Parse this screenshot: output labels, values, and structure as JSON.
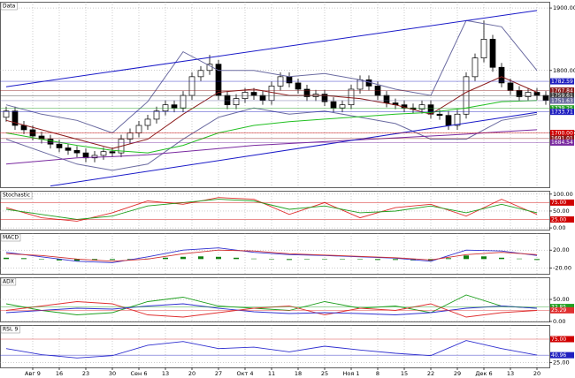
{
  "chart_data": [
    {
      "type": "candlestick",
      "title": "Data",
      "categories": [
        null,
        null,
        null,
        "Авг 9",
        null,
        null,
        "16",
        null,
        null,
        "23",
        null,
        null,
        "30",
        null,
        null,
        "Сен 6",
        null,
        null,
        "13",
        null,
        null,
        "20",
        null,
        null,
        "27",
        null,
        null,
        "Окт 4",
        null,
        null,
        "11",
        null,
        null,
        "18",
        null,
        null,
        "25",
        null,
        null,
        "Ноя 1",
        null,
        null,
        "8",
        null,
        null,
        "15",
        null,
        null,
        "22",
        null,
        null,
        "29",
        null,
        null,
        "Дек 6",
        null,
        null,
        "13",
        null,
        null,
        "20",
        null
      ],
      "open": [
        1725,
        1735,
        1712,
        1705,
        1695,
        1690,
        1682,
        1676,
        1672,
        1668,
        1660,
        1664,
        1670,
        1668,
        1690,
        1700,
        1712,
        1722,
        1735,
        1745,
        1740,
        1760,
        1790,
        1800,
        1810,
        1760,
        1745,
        1755,
        1765,
        1760,
        1752,
        1775,
        1790,
        1780,
        1770,
        1758,
        1762,
        1750,
        1740,
        1745,
        1770,
        1785,
        1775,
        1760,
        1748,
        1745,
        1740,
        1738,
        1745,
        1730,
        1728,
        1712,
        1730,
        1790,
        1820,
        1850,
        1805,
        1780,
        1768,
        1758,
        1765,
        1760
      ],
      "high": [
        1742,
        1742,
        1719,
        1712,
        1702,
        1697,
        1689,
        1683,
        1679,
        1675,
        1671,
        1677,
        1677,
        1697,
        1707,
        1719,
        1729,
        1742,
        1752,
        1752,
        1767,
        1797,
        1807,
        1825,
        1817,
        1767,
        1762,
        1772,
        1772,
        1767,
        1782,
        1797,
        1797,
        1787,
        1777,
        1769,
        1769,
        1757,
        1752,
        1777,
        1792,
        1792,
        1782,
        1767,
        1755,
        1752,
        1747,
        1752,
        1752,
        1737,
        1735,
        1737,
        1797,
        1827,
        1880,
        1857,
        1812,
        1787,
        1775,
        1772,
        1772,
        1767
      ],
      "low": [
        1718,
        1705,
        1698,
        1688,
        1683,
        1675,
        1669,
        1665,
        1661,
        1653,
        1653,
        1657,
        1661,
        1661,
        1683,
        1693,
        1705,
        1715,
        1728,
        1733,
        1733,
        1753,
        1783,
        1793,
        1753,
        1738,
        1738,
        1748,
        1753,
        1745,
        1745,
        1768,
        1773,
        1763,
        1751,
        1751,
        1743,
        1733,
        1733,
        1738,
        1763,
        1768,
        1753,
        1741,
        1738,
        1733,
        1731,
        1731,
        1723,
        1721,
        1705,
        1705,
        1723,
        1783,
        1813,
        1798,
        1773,
        1761,
        1751,
        1751,
        1753,
        1745
      ],
      "close": [
        1735,
        1712,
        1705,
        1695,
        1690,
        1682,
        1676,
        1672,
        1668,
        1660,
        1664,
        1670,
        1668,
        1690,
        1700,
        1712,
        1722,
        1735,
        1745,
        1740,
        1760,
        1790,
        1800,
        1810,
        1760,
        1745,
        1755,
        1765,
        1760,
        1752,
        1775,
        1790,
        1780,
        1770,
        1758,
        1762,
        1750,
        1740,
        1745,
        1770,
        1785,
        1775,
        1760,
        1748,
        1745,
        1740,
        1738,
        1745,
        1730,
        1728,
        1712,
        1730,
        1790,
        1820,
        1850,
        1805,
        1780,
        1768,
        1758,
        1765,
        1760,
        1752
      ],
      "up_color": "#ffffff",
      "down_color": "#000000",
      "overlays": [
        {
          "color": "#6a6aa0",
          "x": [
            0,
            4,
            8,
            12,
            16,
            20,
            24,
            28,
            32,
            36,
            40,
            44,
            48,
            52,
            56,
            60
          ],
          "values": [
            1745,
            1730,
            1720,
            1700,
            1750,
            1830,
            1800,
            1800,
            1790,
            1795,
            1785,
            1770,
            1760,
            1880,
            1870,
            1800
          ]
        },
        {
          "color": "#6a6aa0",
          "x": [
            0,
            4,
            8,
            12,
            16,
            20,
            24,
            28,
            32,
            36,
            40,
            44,
            48,
            52,
            56,
            60
          ],
          "values": [
            1690,
            1670,
            1650,
            1640,
            1650,
            1690,
            1725,
            1740,
            1730,
            1735,
            1725,
            1715,
            1690,
            1690,
            1720,
            1730
          ]
        },
        {
          "color": "#8b1a1a",
          "x": [
            0,
            4,
            8,
            12,
            16,
            20,
            24,
            28,
            32,
            36,
            40,
            44,
            48,
            52,
            56,
            60
          ],
          "values": [
            1720,
            1705,
            1690,
            1675,
            1690,
            1730,
            1765,
            1770,
            1760,
            1760,
            1755,
            1745,
            1730,
            1765,
            1790,
            1765
          ]
        },
        {
          "color": "#22c022",
          "x": [
            0,
            4,
            8,
            12,
            16,
            20,
            24,
            28,
            32,
            36,
            40,
            44,
            48,
            52,
            56,
            60
          ],
          "values": [
            1700,
            1690,
            1680,
            1672,
            1668,
            1680,
            1700,
            1712,
            1718,
            1722,
            1726,
            1730,
            1733,
            1740,
            1750,
            1752
          ]
        },
        {
          "color": "#7a2aa0",
          "x": [
            0,
            4,
            8,
            12,
            16,
            20,
            24,
            28,
            32,
            36,
            40,
            44,
            48,
            52,
            56,
            60
          ],
          "values": [
            1650,
            1655,
            1660,
            1662,
            1665,
            1670,
            1675,
            1680,
            1683,
            1686,
            1689,
            1692,
            1695,
            1698,
            1702,
            1705
          ]
        },
        {
          "color": "#1a1ac8",
          "x": [
            0,
            60
          ],
          "values": [
            1774,
            1896
          ]
        },
        {
          "color": "#1a1ac8",
          "x": [
            5,
            60
          ],
          "values": [
            1615,
            1733
          ]
        }
      ],
      "markers": [
        {
          "value": 1782.59,
          "color": "#2020c0"
        },
        {
          "value": 1767.84,
          "color": "#8b1a1a"
        },
        {
          "value": 1759.61,
          "color": "#404040"
        },
        {
          "value": 1751.63,
          "color": "#6a6aa0"
        },
        {
          "value": 1739.25,
          "color": "#22a022"
        },
        {
          "value": 1733.71,
          "color": "#2020c0"
        },
        {
          "value": 1700,
          "label": "1700.00",
          "color": "#d00000"
        },
        {
          "value": 1691.01,
          "color": "#8b1a1a"
        },
        {
          "value": 1684.54,
          "color": "#7a2aa0"
        }
      ],
      "ylim": [
        1613,
        1910
      ],
      "yticks": [
        {
          "value": 1900,
          "label": "1900.00"
        },
        {
          "value": 1800,
          "label": "1800.00"
        },
        {
          "value": 1700,
          "label": "1700.00"
        }
      ],
      "grid": true
    },
    {
      "type": "indicator",
      "title": "Stochastic",
      "series": [
        {
          "color": "#e03030",
          "x": [
            0,
            4,
            8,
            12,
            16,
            20,
            24,
            28,
            32,
            36,
            40,
            44,
            48,
            52,
            56,
            60
          ],
          "values": [
            60,
            30,
            20,
            45,
            80,
            70,
            90,
            85,
            40,
            75,
            30,
            60,
            70,
            35,
            85,
            40
          ]
        },
        {
          "color": "#20a020",
          "x": [
            0,
            4,
            8,
            12,
            16,
            20,
            24,
            28,
            32,
            36,
            40,
            44,
            48,
            52,
            56,
            60
          ],
          "values": [
            55,
            40,
            25,
            35,
            65,
            75,
            85,
            80,
            55,
            65,
            45,
            50,
            65,
            45,
            70,
            45
          ]
        }
      ],
      "markers": [
        {
          "value": 75,
          "label": "75.00",
          "color": "#d00000"
        },
        {
          "value": 25,
          "label": "25.00",
          "color": "#d00000"
        }
      ],
      "ylim": [
        -5,
        110
      ],
      "yticks": [
        {
          "value": 100,
          "label": "100.00"
        },
        {
          "value": 50,
          "label": "50.00"
        },
        {
          "value": 0,
          "label": "0.00"
        }
      ],
      "grid": true
    },
    {
      "type": "indicator",
      "title": "MACD",
      "bars": {
        "color": "#108010",
        "x": [
          0,
          2,
          4,
          6,
          8,
          10,
          12,
          14,
          16,
          18,
          20,
          22,
          24,
          26,
          28,
          30,
          32,
          34,
          36,
          38,
          40,
          42,
          44,
          46,
          48,
          50,
          52,
          54,
          56,
          58,
          60
        ],
        "values": [
          3,
          2,
          -1,
          -3,
          -4,
          -3,
          -2,
          -2,
          1,
          3,
          5,
          6,
          5,
          3,
          1,
          -1,
          -2,
          -1,
          -1,
          0,
          -1,
          -2,
          -2,
          -3,
          -4,
          2,
          8,
          6,
          3,
          1,
          -2
        ]
      },
      "series": [
        {
          "color": "#3030d0",
          "x": [
            0,
            4,
            8,
            12,
            16,
            20,
            24,
            28,
            32,
            36,
            40,
            44,
            48,
            52,
            56,
            60
          ],
          "values": [
            15,
            5,
            -5,
            -8,
            5,
            20,
            25,
            15,
            10,
            8,
            5,
            2,
            -5,
            20,
            18,
            8
          ]
        },
        {
          "color": "#d03030",
          "x": [
            0,
            4,
            8,
            12,
            16,
            20,
            24,
            28,
            32,
            36,
            40,
            44,
            48,
            52,
            56,
            60
          ],
          "values": [
            12,
            8,
            0,
            -5,
            0,
            12,
            20,
            18,
            12,
            9,
            6,
            3,
            -2,
            10,
            15,
            10
          ]
        }
      ],
      "ylim": [
        -33,
        58
      ],
      "yticks": [
        {
          "value": 20,
          "label": "20.00"
        },
        {
          "value": -20,
          "label": "-20.00"
        }
      ],
      "grid": true
    },
    {
      "type": "indicator",
      "title": "ADX",
      "series": [
        {
          "color": "#20a020",
          "x": [
            0,
            4,
            8,
            12,
            16,
            20,
            24,
            28,
            32,
            36,
            40,
            44,
            48,
            52,
            56,
            60
          ],
          "values": [
            40,
            25,
            15,
            20,
            45,
            55,
            35,
            30,
            25,
            45,
            30,
            35,
            20,
            60,
            35,
            30
          ]
        },
        {
          "color": "#e03030",
          "x": [
            0,
            4,
            8,
            12,
            16,
            20,
            24,
            28,
            32,
            36,
            40,
            44,
            48,
            52,
            56,
            60
          ],
          "values": [
            25,
            35,
            45,
            40,
            15,
            10,
            20,
            30,
            35,
            15,
            30,
            25,
            40,
            10,
            20,
            25
          ]
        },
        {
          "color": "#3030d0",
          "x": [
            0,
            4,
            8,
            12,
            16,
            20,
            24,
            28,
            32,
            36,
            40,
            44,
            48,
            52,
            56,
            60
          ],
          "values": [
            20,
            25,
            30,
            28,
            35,
            40,
            30,
            22,
            18,
            20,
            18,
            15,
            20,
            30,
            35,
            30
          ]
        }
      ],
      "markers": [
        {
          "value": 32.85,
          "color": "#20a020"
        },
        {
          "value": 25.29,
          "color": "#e03030"
        }
      ],
      "ylim": [
        0,
        100
      ],
      "yticks": [
        {
          "value": 50,
          "label": "50.00"
        },
        {
          "value": 0,
          "label": "0.00"
        }
      ],
      "grid": true
    },
    {
      "type": "indicator",
      "title": "RSI, 9",
      "series": [
        {
          "color": "#3030d0",
          "x": [
            0,
            4,
            8,
            12,
            16,
            20,
            24,
            28,
            32,
            36,
            40,
            44,
            48,
            52,
            56,
            60
          ],
          "values": [
            55,
            42,
            35,
            40,
            62,
            70,
            55,
            58,
            48,
            60,
            52,
            45,
            40,
            72,
            55,
            41
          ]
        }
      ],
      "markers": [
        {
          "value": 75,
          "label": "75.00",
          "color": "#d00000"
        },
        {
          "value": 40.96,
          "color": "#2020c0"
        }
      ],
      "ylim": [
        15,
        105
      ],
      "yticks": [
        {
          "value": 25,
          "label": "25.00"
        }
      ],
      "grid": true
    }
  ]
}
